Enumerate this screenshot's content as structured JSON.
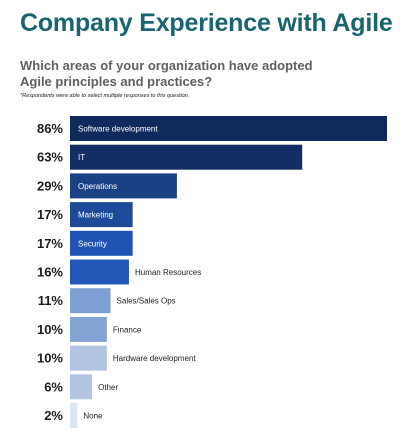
{
  "header": {
    "title": "Company Experience with Agile",
    "question_line1": "Which areas of your organization have adopted",
    "question_line2": "Agile principles and practices?",
    "note": "*Respondents were able to select multiple responses to this question."
  },
  "chart_data": {
    "type": "bar",
    "orientation": "horizontal",
    "title": "Company Experience with Agile",
    "subtitle": "Which areas of your organization have adopted Agile principles and practices?",
    "note": "*Respondents were able to select multiple responses to this question.",
    "categories": [
      "Software development",
      "IT",
      "Operations",
      "Marketing",
      "Security",
      "Human Resources",
      "Sales/Sales Ops",
      "Finance",
      "Hardware development",
      "Other",
      "None"
    ],
    "values": [
      86,
      63,
      29,
      17,
      17,
      16,
      11,
      10,
      10,
      6,
      2
    ],
    "value_labels": [
      "86%",
      "63%",
      "29%",
      "17%",
      "17%",
      "16%",
      "11%",
      "10%",
      "10%",
      "6%",
      "2%"
    ],
    "colors": [
      "#102a5e",
      "#132e64",
      "#1b4185",
      "#1d4a99",
      "#1f54b4",
      "#2358b9",
      "#7fa0d4",
      "#85a4d6",
      "#b3c4e3",
      "#b3c4e3",
      "#dde6f3"
    ],
    "label_inside": [
      true,
      true,
      true,
      true,
      true,
      false,
      false,
      false,
      false,
      false,
      false
    ],
    "xlim": [
      0,
      86
    ],
    "grid": false,
    "legend": "none"
  }
}
